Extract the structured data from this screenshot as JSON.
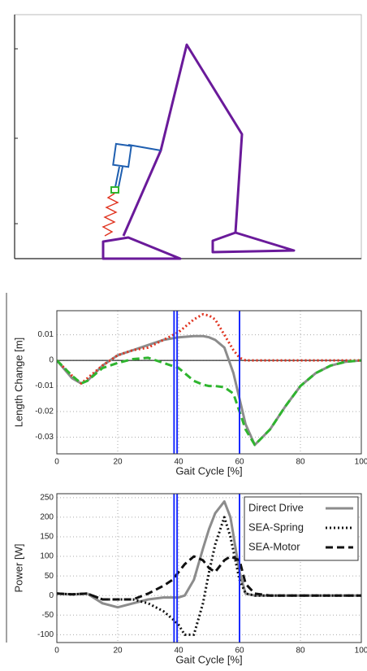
{
  "chart_data": [
    {
      "type": "line",
      "xlabel": "Gait Cycle [%]",
      "ylabel": "Length Change [m]",
      "x": [
        0,
        5,
        8,
        10,
        15,
        20,
        25,
        30,
        35,
        40,
        45,
        48,
        50,
        52,
        55,
        58,
        60,
        62,
        65,
        70,
        75,
        80,
        85,
        90,
        95,
        100
      ],
      "series": [
        {
          "color": "#8c8c8c",
          "dash": "solid",
          "values": [
            0,
            -0.007,
            -0.009,
            -0.008,
            -0.002,
            0.002,
            0.004,
            0.006,
            0.008,
            0.009,
            0.0095,
            0.0095,
            0.009,
            0.008,
            0.005,
            -0.005,
            -0.015,
            -0.025,
            -0.033,
            -0.027,
            -0.018,
            -0.01,
            -0.005,
            -0.002,
            -0.0005,
            0
          ]
        },
        {
          "color": "#e0331f",
          "dash": "dotted",
          "values": [
            0,
            -0.006,
            -0.009,
            -0.007,
            -0.002,
            0.002,
            0.004,
            0.005,
            0.008,
            0.011,
            0.016,
            0.018,
            0.0175,
            0.016,
            0.01,
            0.004,
            0.001,
            0,
            0,
            0,
            0,
            0,
            0,
            0,
            0,
            0
          ]
        },
        {
          "color": "#2fb52f",
          "dash": "dashed",
          "values": [
            0,
            -0.006,
            -0.009,
            -0.008,
            -0.003,
            -0.001,
            0.0005,
            0.001,
            -0.001,
            -0.003,
            -0.008,
            -0.0095,
            -0.01,
            -0.01,
            -0.0105,
            -0.013,
            -0.02,
            -0.027,
            -0.033,
            -0.027,
            -0.018,
            -0.01,
            -0.005,
            -0.002,
            -0.0005,
            0
          ]
        }
      ],
      "xlim": [
        0,
        100
      ],
      "xticks": [
        0,
        20,
        40,
        60,
        80,
        100
      ],
      "ylim": [
        -0.0365,
        0.0194
      ],
      "yticks": [
        0.01,
        0,
        -0.01,
        -0.02,
        -0.03
      ],
      "grid": true,
      "zero_line": true,
      "vlines": {
        "color": "#1a2bff",
        "values": [
          38.5,
          39.5,
          60
        ]
      }
    },
    {
      "type": "line",
      "xlabel": "Gait Cycle [%]",
      "ylabel": "Power [W]",
      "x": [
        0,
        5,
        10,
        15,
        20,
        25,
        30,
        35,
        38,
        40,
        42,
        45,
        48,
        50,
        52,
        55,
        57,
        60,
        62,
        65,
        70,
        80,
        90,
        100
      ],
      "series": [
        {
          "name": "Direct Drive",
          "color": "#8c8c8c",
          "dash": "solid",
          "values": [
            5,
            3,
            5,
            -20,
            -30,
            -20,
            -10,
            -5,
            -5,
            -5,
            0,
            40,
            120,
            170,
            210,
            240,
            200,
            60,
            5,
            0,
            0,
            0,
            0,
            0
          ]
        },
        {
          "name": "SEA-Spring",
          "color": "#111111",
          "dash": "dotted",
          "values": [
            5,
            3,
            5,
            -10,
            -10,
            -10,
            -20,
            -40,
            -60,
            -75,
            -100,
            -100,
            -20,
            60,
            130,
            200,
            150,
            40,
            5,
            0,
            0,
            0,
            0,
            0
          ]
        },
        {
          "name": "SEA-Motor",
          "color": "#111111",
          "dash": "dashed",
          "values": [
            5,
            3,
            5,
            -10,
            -10,
            -10,
            5,
            25,
            40,
            60,
            80,
            100,
            90,
            70,
            60,
            90,
            100,
            90,
            30,
            5,
            0,
            0,
            0,
            0
          ]
        }
      ],
      "xlim": [
        0,
        100
      ],
      "xticks": [
        0,
        20,
        40,
        60,
        80,
        100
      ],
      "ylim": [
        -120,
        260
      ],
      "yticks": [
        250,
        200,
        150,
        100,
        50,
        0,
        -50,
        -100
      ],
      "grid": true,
      "zero_line": false,
      "legend": "upper right",
      "vlines": {
        "color": "#1a2bff",
        "values": [
          38.5,
          39.5,
          60
        ]
      }
    }
  ]
}
